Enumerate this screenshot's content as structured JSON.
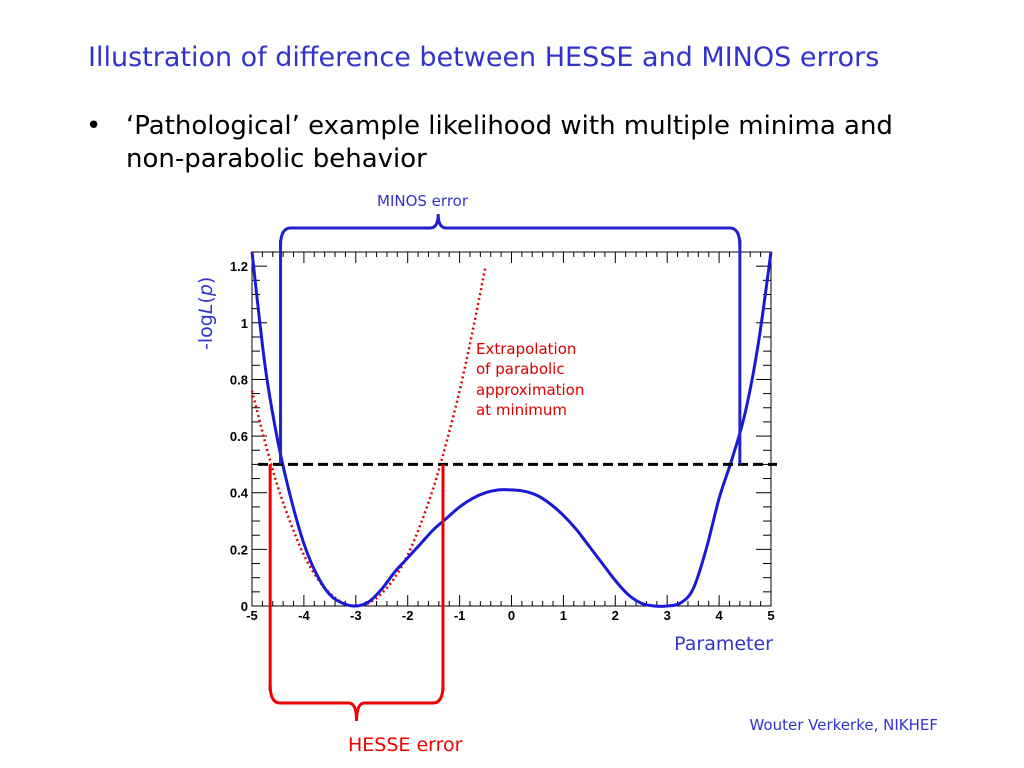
{
  "slide": {
    "title": "Illustration of difference between HESSE and MINOS errors",
    "bullet": "‘Pathological’ example likelihood with multiple minima and non-parabolic behavior",
    "bullet_marker": "•",
    "footer": "Wouter Verkerke, NIKHEF"
  },
  "annotations": {
    "minos_label": "MINOS error",
    "hesse_label": "HESSE error",
    "parabola_note": [
      "Extrapolation",
      "of parabolic",
      "approximation",
      "at minimum"
    ]
  },
  "colors": {
    "title": "#3333cc",
    "likelihood": "#1a1ad6",
    "parabola": "#dd0000",
    "minos": "#2222cc",
    "hesse": "#ee0000",
    "threshold": "#000000"
  },
  "chart_data": {
    "type": "line",
    "title": "",
    "xlabel": "Parameter",
    "ylabel_prefix": "-log",
    "ylabel_italic": "L",
    "ylabel_open": "(",
    "ylabel_var": "p",
    "ylabel_close": ")",
    "xlim": [
      -5,
      5
    ],
    "ylim": [
      0,
      1.25
    ],
    "xticks": [
      -5,
      -4,
      -3,
      -2,
      -1,
      0,
      1,
      2,
      3,
      4,
      5
    ],
    "xtick_labels": [
      "-5",
      "-4",
      "-3",
      "-2",
      "-1",
      "0",
      "1",
      "2",
      "3",
      "4",
      "5"
    ],
    "yticks": [
      0,
      0.2,
      0.4,
      0.6,
      0.8,
      1,
      1.2
    ],
    "ytick_labels": [
      "0",
      "0.2",
      "0.4",
      "0.6",
      "0.8",
      "1",
      "1.2"
    ],
    "grid": false,
    "series": [
      {
        "x": [
          -5.0,
          -4.75,
          -4.5,
          -4.25,
          -4.0,
          -3.75,
          -3.5,
          -3.25,
          -3.0,
          -2.75,
          -2.5,
          -2.25,
          -2.0,
          -1.75,
          -1.5,
          -1.25,
          -1.0,
          -0.75,
          -0.5,
          -0.25,
          0.0,
          0.25,
          0.5,
          0.75,
          1.0,
          1.25,
          1.5,
          1.75,
          2.0,
          2.25,
          2.5,
          2.75,
          3.0,
          3.25,
          3.5,
          3.75,
          4.0,
          4.25,
          4.5,
          4.75,
          5.0
        ],
        "y": [
          1.25,
          0.85,
          0.58,
          0.38,
          0.22,
          0.11,
          0.04,
          0.01,
          0.0,
          0.015,
          0.06,
          0.12,
          0.17,
          0.22,
          0.27,
          0.31,
          0.35,
          0.38,
          0.4,
          0.41,
          0.41,
          0.405,
          0.39,
          0.36,
          0.32,
          0.27,
          0.21,
          0.15,
          0.09,
          0.04,
          0.01,
          0.0,
          0.0,
          0.01,
          0.06,
          0.2,
          0.38,
          0.52,
          0.68,
          0.92,
          1.25
        ]
      },
      {
        "x": [
          -5.0,
          -4.75,
          -4.5,
          -4.25,
          -4.0,
          -3.75,
          -3.5,
          -3.25,
          -3.0,
          -2.75,
          -2.5,
          -2.25,
          -2.0,
          -1.75,
          -1.5,
          -1.25,
          -1.0,
          -0.75,
          -0.5
        ],
        "y": [
          0.76,
          0.58,
          0.42,
          0.29,
          0.18,
          0.1,
          0.045,
          0.011,
          0.0,
          0.011,
          0.045,
          0.1,
          0.18,
          0.29,
          0.42,
          0.58,
          0.76,
          0.97,
          1.2
        ]
      }
    ],
    "threshold": 0.5,
    "minos_interval": [
      -4.45,
      4.4
    ],
    "hesse_interval": [
      -4.65,
      -1.32
    ]
  }
}
